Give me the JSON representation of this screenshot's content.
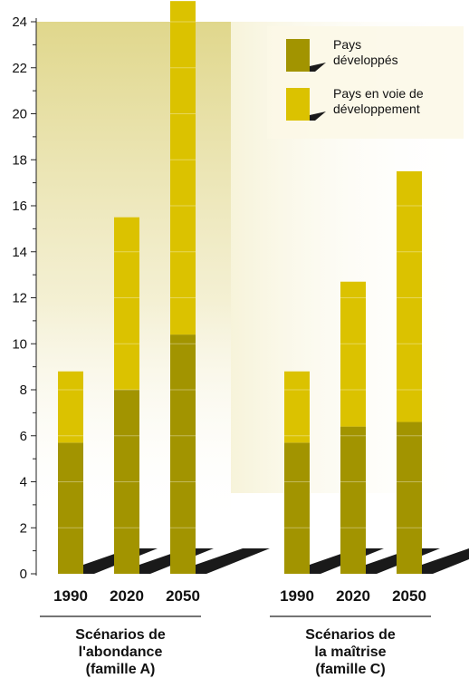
{
  "chart_data": {
    "type": "bar",
    "stacked": true,
    "ylim": [
      0,
      24
    ],
    "yticks": [
      "0",
      "2",
      "4",
      "6",
      "8",
      "10",
      "12",
      "14",
      "16",
      "18",
      "20",
      "22",
      "24"
    ],
    "categories": [
      "1990",
      "2020",
      "2050",
      "1990",
      "2020",
      "2050"
    ],
    "groups": [
      {
        "label": [
          "Scénarios de",
          "l'abondance",
          "(famille A)"
        ],
        "categories": [
          0,
          1,
          2
        ]
      },
      {
        "label": [
          "Scénarios de",
          "la maîtrise",
          "(famille C)"
        ],
        "categories": [
          3,
          4,
          5
        ]
      }
    ],
    "series": [
      {
        "name": "Pays développés",
        "legend_lines": [
          "Pays",
          "développés"
        ],
        "color": "#a29400",
        "values": [
          5.7,
          8.0,
          10.4,
          5.7,
          6.4,
          6.6
        ]
      },
      {
        "name": "Pays en voie de développement",
        "legend_lines": [
          "Pays en voie de",
          "développement"
        ],
        "color": "#dbc200",
        "values": [
          3.1,
          7.5,
          14.5,
          3.1,
          6.3,
          10.9
        ]
      }
    ],
    "grid": false,
    "legend_position": "top-right",
    "colors": {
      "background_glow": "#e9e2a4",
      "shadow": "#1a1a1a"
    }
  }
}
